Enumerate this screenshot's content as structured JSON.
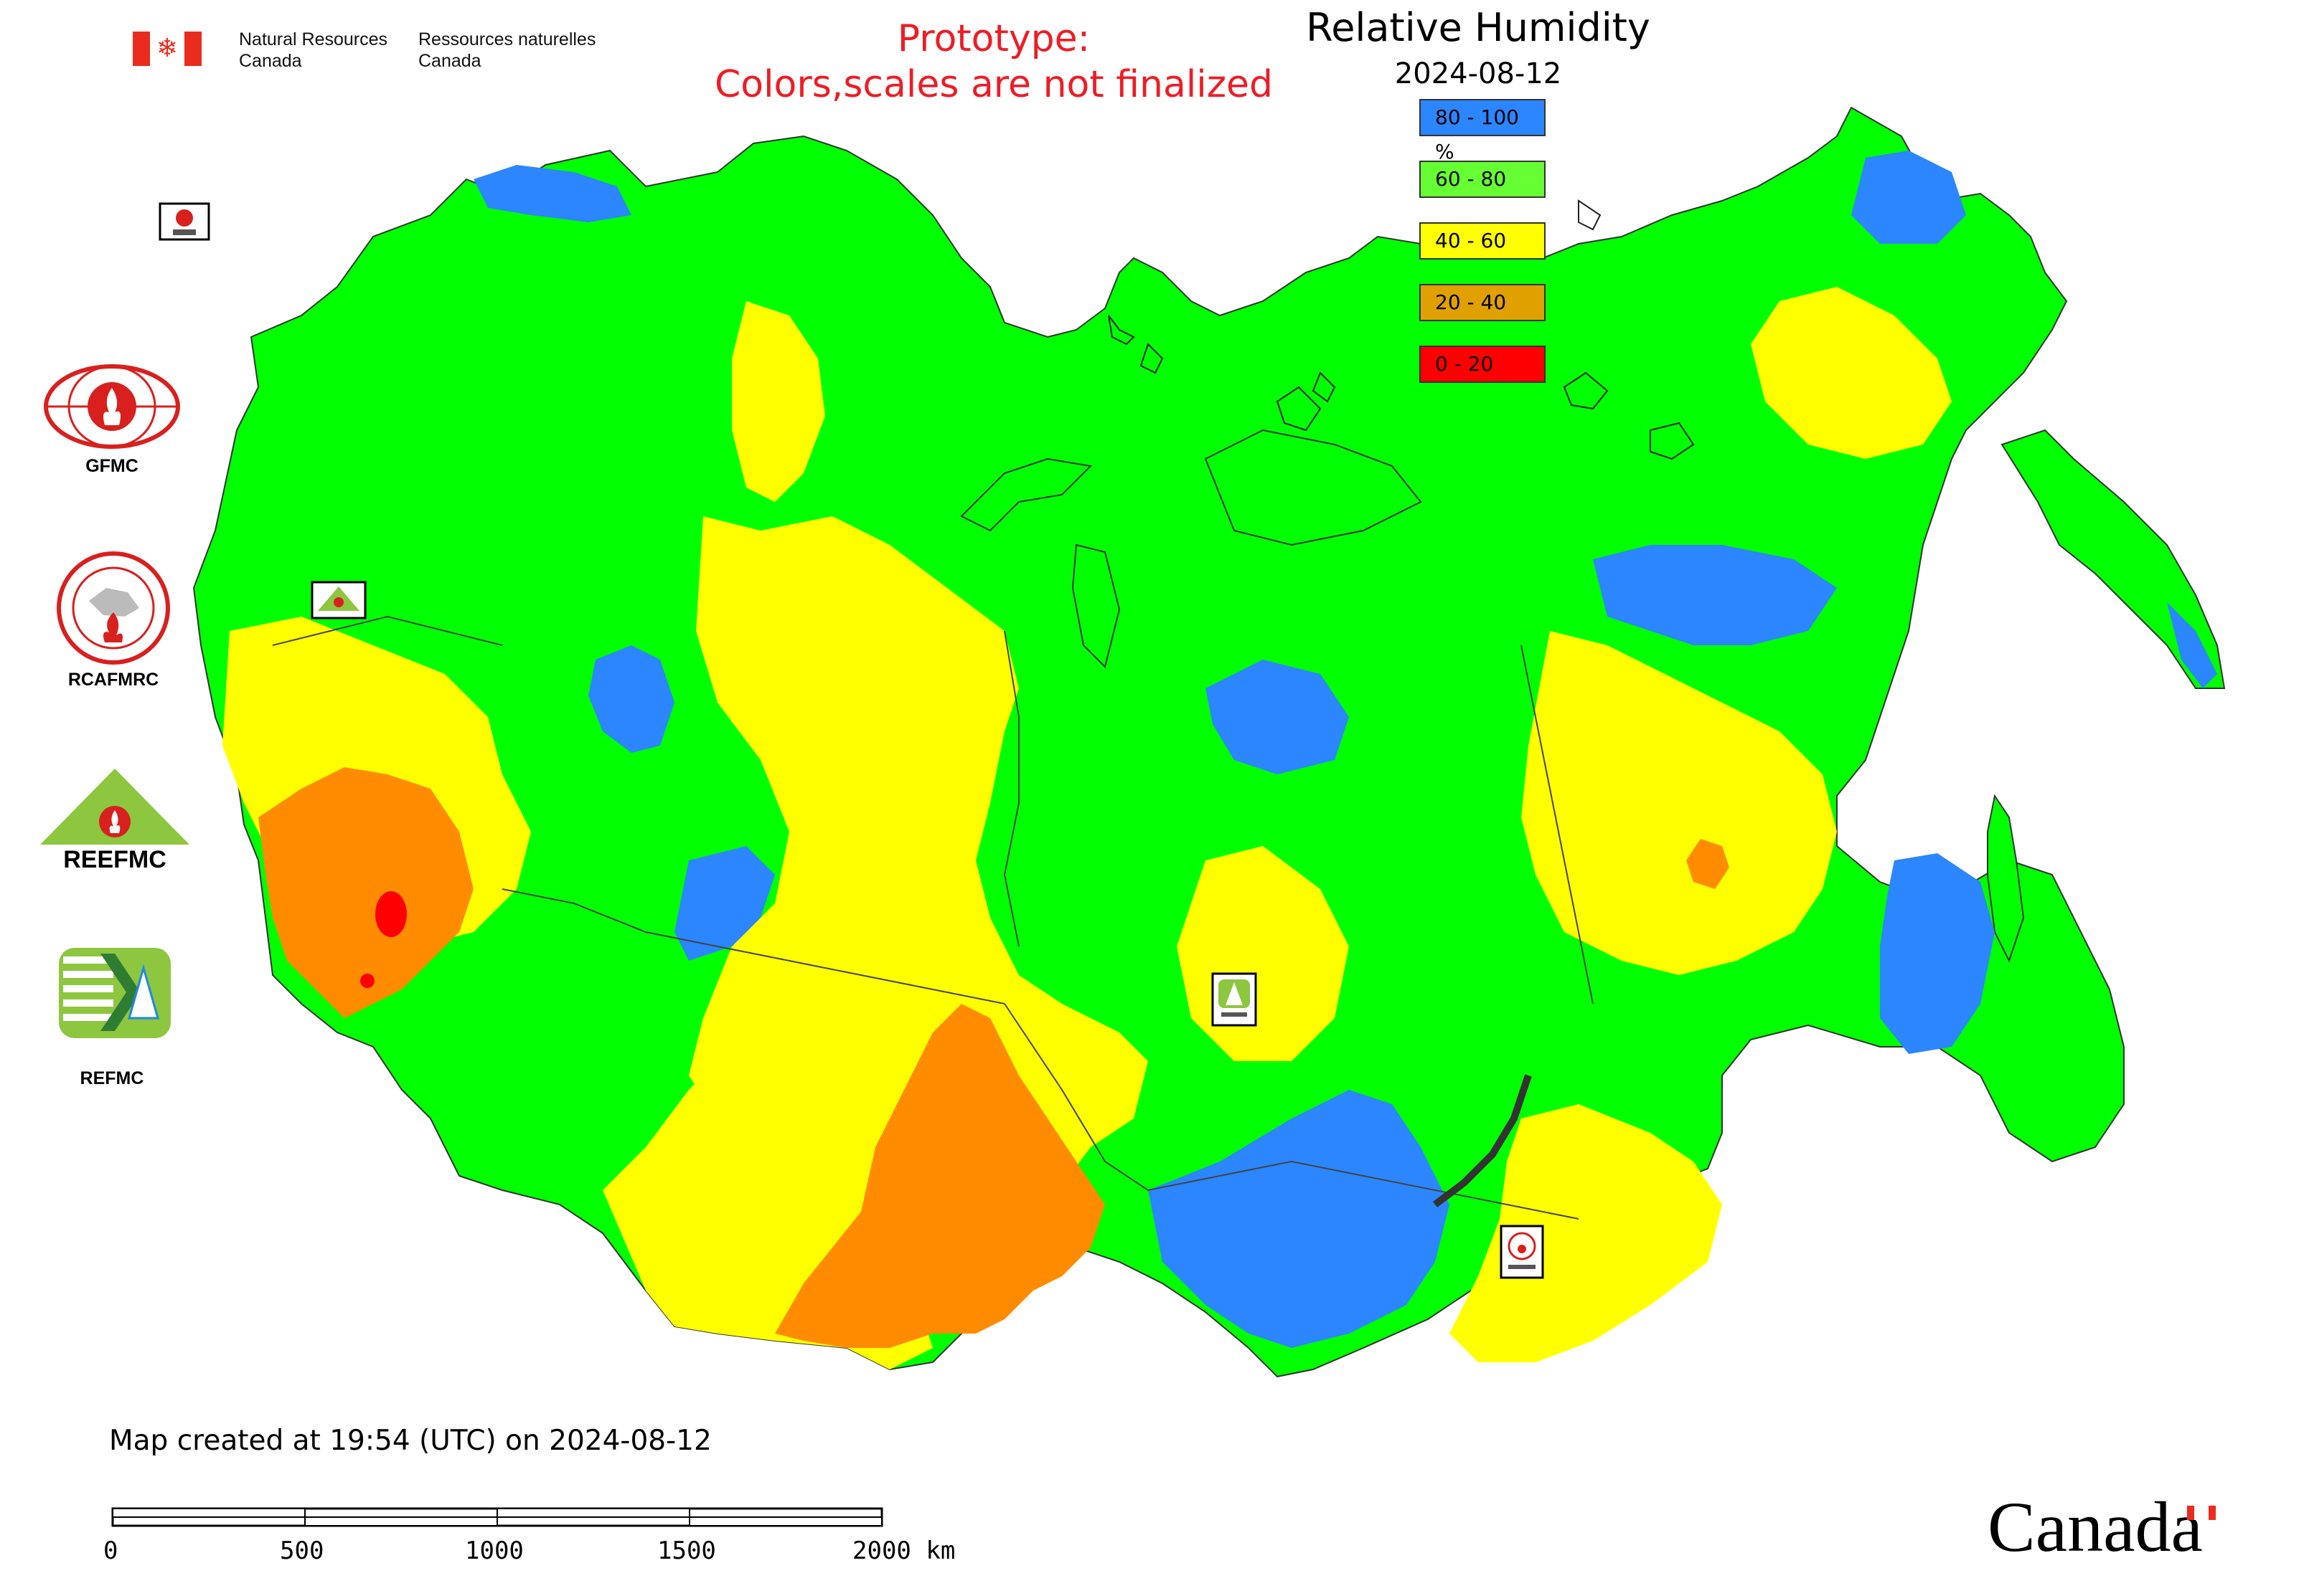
{
  "header": {
    "agency_en": "Natural Resources",
    "agency_en2": "Canada",
    "agency_fr": "Ressources naturelles",
    "agency_fr2": "Canada",
    "prototype_line1": "Prototype:",
    "prototype_line2": "Colors,scales are not finalized",
    "title": "Relative Humidity",
    "date": "2024-08-12"
  },
  "legend": [
    {
      "label": "80 - 100 %",
      "color": "#2b86ff"
    },
    {
      "label": "60 - 80",
      "color": "#66ff33"
    },
    {
      "label": "40 - 60",
      "color": "#ffff00"
    },
    {
      "label": "20 - 40",
      "color": "#e0a000"
    },
    {
      "label": "0 - 20",
      "color": "#ff0000"
    }
  ],
  "map_colors": {
    "humid_80_100": "#2b86ff",
    "humid_60_80": "#00ff00",
    "humid_40_60": "#ffff00",
    "humid_20_40": "#ff8c00",
    "humid_0_20": "#ff0000",
    "border": "#444444"
  },
  "logos": {
    "gfmc": "GFMC",
    "rcafmrc": "RCAFMRC",
    "reefmc_text": "REEFMC",
    "refmc": "REFMC"
  },
  "map_markers": [
    {
      "name": "gfmc-marker",
      "icon": "fire-center-icon"
    },
    {
      "name": "reefmc-marker",
      "icon": "fire-center-icon"
    },
    {
      "name": "refmc-marker",
      "icon": "fire-center-icon"
    },
    {
      "name": "rcafmrc-marker",
      "icon": "fire-center-icon"
    }
  ],
  "footer": {
    "created": "Map created at 19:54 (UTC) on 2024-08-12",
    "scale_labels": [
      "0",
      "500",
      "1000",
      "1500",
      "2000 km"
    ],
    "wordmark": "Canada"
  }
}
